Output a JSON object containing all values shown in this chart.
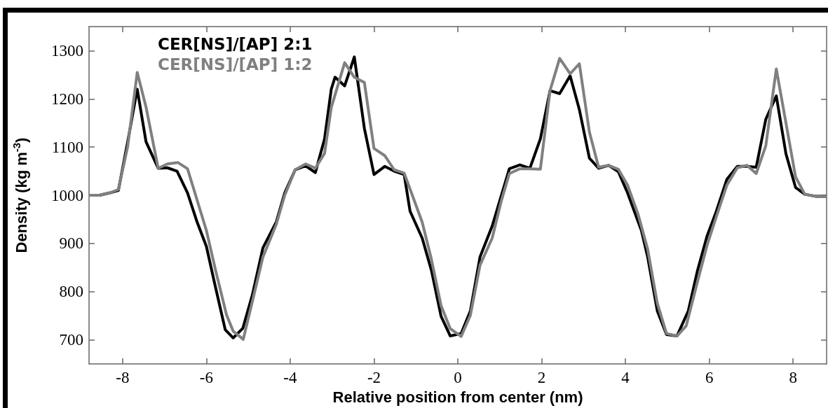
{
  "chart_data": {
    "type": "line",
    "xlabel": "Relative position from center (nm)",
    "ylabel": "Density (kg m$^{-3}$)",
    "xlim": [
      -8.8,
      8.8
    ],
    "xticks": [
      -8,
      -6,
      -4,
      -2,
      0,
      2,
      4,
      6,
      8
    ],
    "ylim": [
      650,
      1350
    ],
    "yticks": [
      700,
      800,
      900,
      1000,
      1100,
      1200,
      1300
    ],
    "grid": false,
    "legend": "top left",
    "marker": "none",
    "line_style": "solid",
    "series": [
      {
        "name": "CER[NS]/[AP] 2:1",
        "color": "#000000",
        "x": [
          -8.8,
          -8.55,
          -8.3,
          -8.1,
          -7.88,
          -7.65,
          -7.44,
          -7.15,
          -6.93,
          -6.7,
          -6.45,
          -6.22,
          -6.0,
          -5.8,
          -5.55,
          -5.36,
          -5.13,
          -4.9,
          -4.65,
          -4.33,
          -4.13,
          -3.88,
          -3.63,
          -3.4,
          -3.18,
          -3.02,
          -2.93,
          -2.7,
          -2.47,
          -2.23,
          -2.0,
          -1.74,
          -1.52,
          -1.28,
          -1.14,
          -0.85,
          -0.63,
          -0.4,
          -0.18,
          0.08,
          0.3,
          0.53,
          0.82,
          1.04,
          1.23,
          1.48,
          1.72,
          1.97,
          2.2,
          2.43,
          2.68,
          2.9,
          3.14,
          3.36,
          3.6,
          3.83,
          4.05,
          4.38,
          4.53,
          4.76,
          4.98,
          5.23,
          5.5,
          5.72,
          5.95,
          6.17,
          6.42,
          6.67,
          6.9,
          7.12,
          7.35,
          7.6,
          7.83,
          8.06,
          8.28,
          8.53,
          8.8
        ],
        "values": [
          1000,
          1000,
          1005,
          1010,
          1110,
          1220,
          1111,
          1056,
          1057,
          1050,
          1005,
          944,
          894,
          816,
          721,
          704,
          724,
          794,
          891,
          945,
          1005,
          1053,
          1061,
          1047,
          1117,
          1220,
          1245,
          1227,
          1287,
          1139,
          1043,
          1060,
          1050,
          1043,
          967,
          911,
          844,
          749,
          708,
          713,
          760,
          872,
          936,
          1000,
          1055,
          1063,
          1056,
          1117,
          1217,
          1211,
          1248,
          1178,
          1077,
          1056,
          1062,
          1049,
          1005,
          927,
          872,
          760,
          711,
          708,
          760,
          844,
          916,
          967,
          1033,
          1060,
          1060,
          1058,
          1158,
          1206,
          1086,
          1016,
          1002,
          998,
          998
        ]
      },
      {
        "name": "CER[NS]/[AP] 1:2",
        "color": "#808080",
        "x": [
          -8.8,
          -8.55,
          -8.3,
          -8.1,
          -7.88,
          -7.65,
          -7.44,
          -7.15,
          -6.93,
          -6.68,
          -6.45,
          -6.0,
          -5.78,
          -5.52,
          -5.36,
          -5.12,
          -4.88,
          -4.65,
          -4.33,
          -4.13,
          -3.88,
          -3.63,
          -3.4,
          -3.18,
          -3.02,
          -2.7,
          -2.47,
          -2.23,
          -2.0,
          -1.74,
          -1.52,
          -1.28,
          -0.85,
          -0.63,
          -0.4,
          -0.18,
          0.08,
          0.3,
          0.53,
          0.82,
          1.04,
          1.23,
          1.48,
          1.72,
          1.97,
          2.2,
          2.43,
          2.68,
          2.9,
          3.14,
          3.36,
          3.6,
          3.83,
          4.05,
          4.3,
          4.53,
          4.76,
          4.98,
          5.23,
          5.45,
          5.72,
          5.95,
          6.17,
          6.42,
          6.67,
          6.9,
          7.12,
          7.35,
          7.6,
          7.83,
          8.06,
          8.28,
          8.53,
          8.8
        ],
        "values": [
          1000,
          1000,
          1005,
          1012,
          1100,
          1255,
          1183,
          1056,
          1065,
          1068,
          1055,
          927,
          844,
          752,
          718,
          701,
          788,
          872,
          940,
          1000,
          1053,
          1065,
          1056,
          1087,
          1182,
          1275,
          1245,
          1234,
          1097,
          1082,
          1053,
          1046,
          944,
          867,
          771,
          723,
          707,
          751,
          855,
          911,
          989,
          1045,
          1055,
          1055,
          1054,
          1217,
          1284,
          1252,
          1273,
          1131,
          1058,
          1062,
          1054,
          1021,
          961,
          888,
          776,
          713,
          708,
          729,
          821,
          897,
          956,
          1021,
          1057,
          1062,
          1045,
          1103,
          1262,
          1150,
          1038,
          1002,
          998,
          998
        ]
      }
    ]
  }
}
